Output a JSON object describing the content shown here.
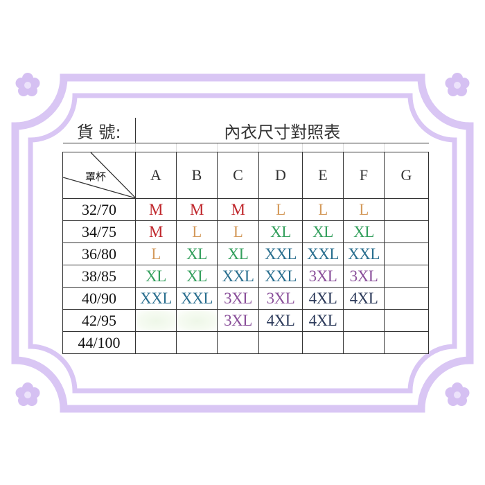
{
  "header": {
    "item_no_label": "貨 號:",
    "title": "內衣尺寸對照表"
  },
  "corner_label": "罩杯",
  "cups": [
    "A",
    "B",
    "C",
    "D",
    "E",
    "F",
    "G"
  ],
  "rows": [
    {
      "band": "32/70",
      "sizes": [
        "M",
        "M",
        "M",
        "L",
        "L",
        "L",
        ""
      ]
    },
    {
      "band": "34/75",
      "sizes": [
        "M",
        "L",
        "L",
        "XL",
        "XL",
        "XL",
        ""
      ]
    },
    {
      "band": "36/80",
      "sizes": [
        "L",
        "XL",
        "XL",
        "XXL",
        "XXL",
        "XXL",
        ""
      ]
    },
    {
      "band": "38/85",
      "sizes": [
        "XL",
        "XL",
        "XXL",
        "XXL",
        "3XL",
        "3XL",
        ""
      ]
    },
    {
      "band": "40/90",
      "sizes": [
        "XXL",
        "XXL",
        "3XL",
        "3XL",
        "4XL",
        "4XL",
        ""
      ]
    },
    {
      "band": "42/95",
      "sizes": [
        "",
        "",
        "3XL",
        "4XL",
        "4XL",
        "",
        ""
      ]
    },
    {
      "band": "44/100",
      "sizes": [
        "",
        "",
        "",
        "",
        "",
        "",
        ""
      ]
    }
  ],
  "size_colors": {
    "M": "#c0282d",
    "L": "#d49a5c",
    "XL": "#35a05e",
    "XXL": "#2a6f8f",
    "3XL": "#8a4f9a",
    "4XL": "#2c3a5a"
  },
  "frame_color": "#d9c6f4"
}
